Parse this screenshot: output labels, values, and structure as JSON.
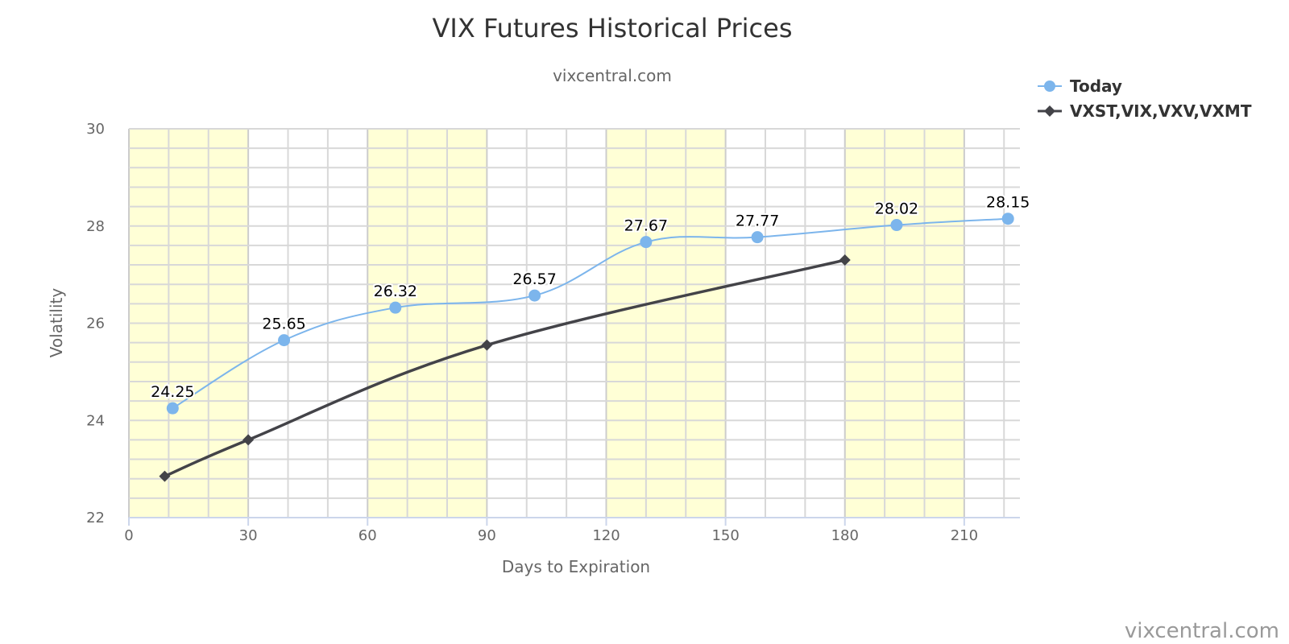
{
  "chart_data": {
    "type": "line",
    "title": "VIX Futures Historical Prices",
    "subtitle": "vixcentral.com",
    "xlabel": "Days to Expiration",
    "ylabel": "Volatility",
    "xlim": [
      0,
      224
    ],
    "ylim": [
      22,
      30
    ],
    "x_ticks": [
      "0",
      "30",
      "60",
      "90",
      "120",
      "150",
      "180",
      "210"
    ],
    "y_ticks": [
      "22",
      "24",
      "26",
      "28",
      "30"
    ],
    "x_minor_step": 10,
    "y_minor_step": 0.4,
    "grid": true,
    "legend_position": "top-right",
    "shaded_bands": [
      [
        0,
        30
      ],
      [
        60,
        90
      ],
      [
        120,
        150
      ],
      [
        180,
        210
      ]
    ],
    "series": [
      {
        "name": "Today",
        "color": "#7cb5ec",
        "marker": "circle",
        "x": [
          11,
          39,
          67,
          102,
          130,
          158,
          193,
          221
        ],
        "y": [
          24.25,
          25.65,
          26.32,
          26.57,
          27.67,
          27.77,
          28.02,
          28.15
        ],
        "labels": [
          "24.25",
          "25.65",
          "26.32",
          "26.57",
          "27.67",
          "27.77",
          "28.02",
          "28.15"
        ]
      },
      {
        "name": "VXST,VIX,VXV,VXMT",
        "color": "#434348",
        "marker": "diamond",
        "x": [
          9,
          30,
          90,
          180
        ],
        "y": [
          22.85,
          23.6,
          25.55,
          27.3
        ]
      }
    ],
    "band_color": "#ffffd6",
    "grid_color": "#d8d8d8"
  },
  "credit": "vixcentral.com"
}
